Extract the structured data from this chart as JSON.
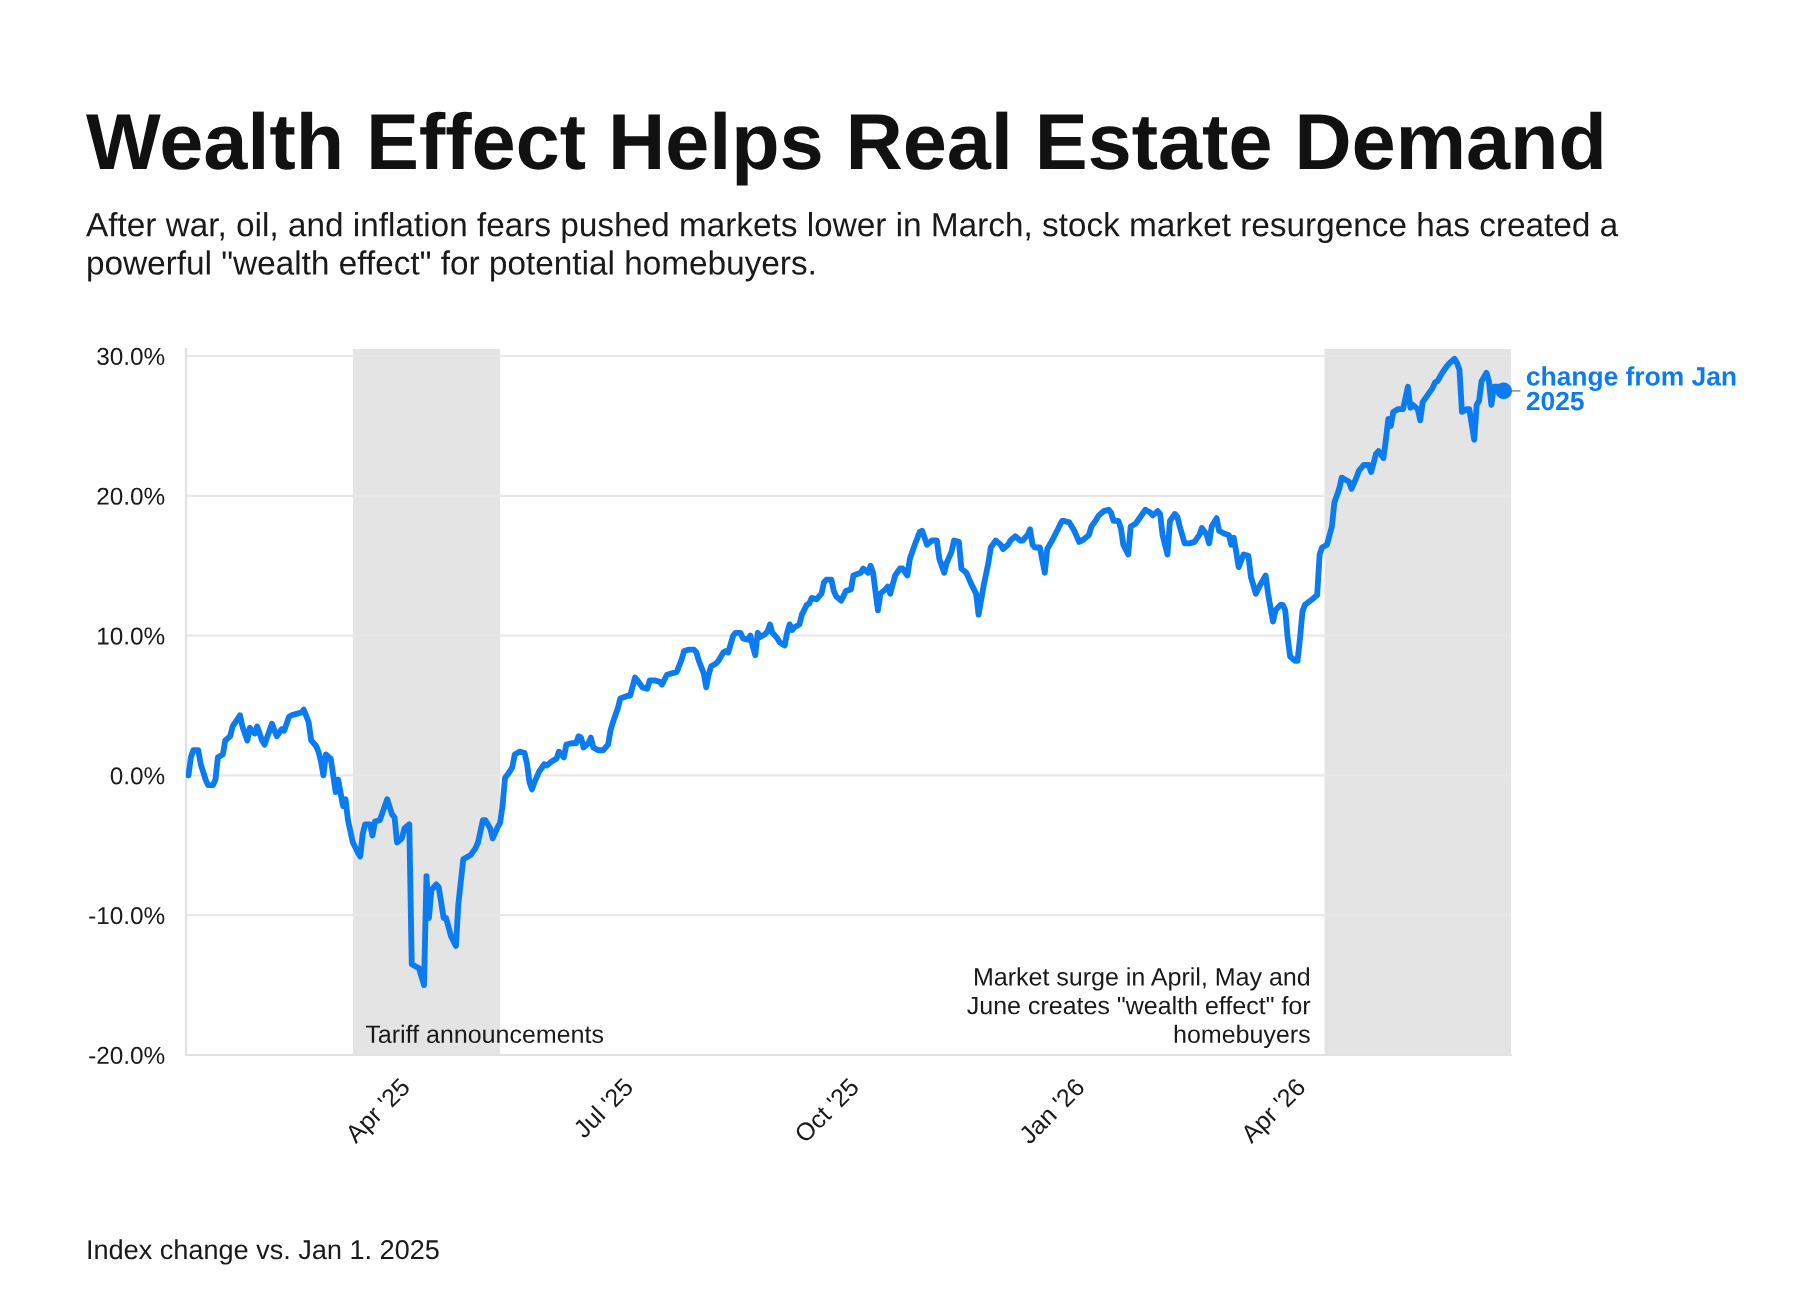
{
  "chart_data": {
    "type": "line",
    "title": "Wealth Effect Helps Real Estate Demand",
    "subtitle": "After war, oil, and inflation fears pushed markets lower in March, stock market resurgence has created a powerful \"wealth effect\" for potential homebuyers.",
    "annotations": [
      "Index change vs. Jan 1. 2025"
    ],
    "x": [
      "2025-01-02",
      "2025-01-03",
      "2025-01-04",
      "2025-01-06",
      "2025-01-07",
      "2025-01-09",
      "2025-01-10",
      "2025-01-12",
      "2025-01-13",
      "2025-01-14",
      "2025-01-16",
      "2025-01-17",
      "2025-01-19",
      "2025-01-20",
      "2025-01-23",
      "2025-01-24",
      "2025-01-26",
      "2025-01-27",
      "2025-01-29",
      "2025-01-30",
      "2025-02-01",
      "2025-02-02",
      "2025-02-04",
      "2025-02-05",
      "2025-02-07",
      "2025-02-09",
      "2025-02-10",
      "2025-02-12",
      "2025-02-13",
      "2025-02-15",
      "2025-02-17",
      "2025-02-18",
      "2025-02-20",
      "2025-02-21",
      "2025-02-23",
      "2025-02-24",
      "2025-02-25",
      "2025-02-26",
      "2025-02-27",
      "2025-03-01",
      "2025-03-02",
      "2025-03-03",
      "2025-03-04",
      "2025-03-06",
      "2025-03-07",
      "2025-03-08",
      "2025-03-10",
      "2025-03-12",
      "2025-03-13",
      "2025-03-14",
      "2025-03-15",
      "2025-03-17",
      "2025-03-18",
      "2025-03-19",
      "2025-03-21",
      "2025-03-23",
      "2025-03-24",
      "2025-03-26",
      "2025-03-27",
      "2025-03-28",
      "2025-03-30",
      "2025-03-31",
      "2025-04-02",
      "2025-04-03",
      "2025-04-05",
      "2025-04-06",
      "2025-04-08",
      "2025-04-09",
      "2025-04-10",
      "2025-04-11",
      "2025-04-13",
      "2025-04-14",
      "2025-04-16",
      "2025-04-17",
      "2025-04-19",
      "2025-04-21",
      "2025-04-22",
      "2025-04-24",
      "2025-04-27",
      "2025-04-29",
      "2025-04-30",
      "2025-05-02",
      "2025-05-03",
      "2025-05-05",
      "2025-05-06",
      "2025-05-08",
      "2025-05-09",
      "2025-05-10",
      "2025-05-11",
      "2025-05-13",
      "2025-05-14",
      "2025-05-15",
      "2025-05-17",
      "2025-05-19",
      "2025-05-20",
      "2025-05-21",
      "2025-05-22",
      "2025-05-23",
      "2025-05-25",
      "2025-05-27",
      "2025-05-28",
      "2025-05-30",
      "2025-06-01",
      "2025-06-02",
      "2025-06-04",
      "2025-06-05",
      "2025-06-07",
      "2025-06-09",
      "2025-06-10",
      "2025-06-11",
      "2025-06-12",
      "2025-06-14",
      "2025-06-15",
      "2025-06-16",
      "2025-06-18",
      "2025-06-20",
      "2025-06-22",
      "2025-06-23",
      "2025-06-24",
      "2025-06-26",
      "2025-06-27",
      "2025-06-30",
      "2025-07-01",
      "2025-07-03",
      "2025-07-04",
      "2025-07-06",
      "2025-07-08",
      "2025-07-09",
      "2025-07-11",
      "2025-07-13",
      "2025-07-14",
      "2025-07-16",
      "2025-07-18",
      "2025-07-20",
      "2025-07-22",
      "2025-07-23",
      "2025-07-25",
      "2025-07-27",
      "2025-07-28",
      "2025-07-29",
      "2025-07-31",
      "2025-08-01",
      "2025-08-02",
      "2025-08-03",
      "2025-08-05",
      "2025-08-06",
      "2025-08-08",
      "2025-08-09",
      "2025-08-10",
      "2025-08-12",
      "2025-08-13",
      "2025-08-15",
      "2025-08-16",
      "2025-08-18",
      "2025-08-19",
      "2025-08-20",
      "2025-08-21",
      "2025-08-22",
      "2025-08-23",
      "2025-08-25",
      "2025-08-26",
      "2025-08-27",
      "2025-08-28",
      "2025-08-30",
      "2025-08-31",
      "2025-09-02",
      "2025-09-03",
      "2025-09-04",
      "2025-09-05",
      "2025-09-06",
      "2025-09-08",
      "2025-09-09",
      "2025-09-11",
      "2025-09-12",
      "2025-09-13",
      "2025-09-15",
      "2025-09-17",
      "2025-09-18",
      "2025-09-19",
      "2025-09-21",
      "2025-09-22",
      "2025-09-23",
      "2025-09-25",
      "2025-09-27",
      "2025-09-29",
      "2025-09-30",
      "2025-10-03",
      "2025-10-04",
      "2025-10-06",
      "2025-10-07",
      "2025-10-08",
      "2025-10-10",
      "2025-10-11",
      "2025-10-13",
      "2025-10-14",
      "2025-10-15",
      "2025-10-17",
      "2025-10-19",
      "2025-10-20",
      "2025-10-22",
      "2025-10-23",
      "2025-10-25",
      "2025-10-27",
      "2025-10-28",
      "2025-10-30",
      "2025-11-01",
      "2025-11-03",
      "2025-11-04",
      "2025-11-06",
      "2025-11-07",
      "2025-11-09",
      "2025-11-10",
      "2025-11-12",
      "2025-11-13",
      "2025-11-15",
      "2025-11-17",
      "2025-11-19",
      "2025-11-20",
      "2025-11-21",
      "2025-11-22",
      "2025-11-24",
      "2025-11-25",
      "2025-11-27",
      "2025-11-29",
      "2025-11-30",
      "2025-12-02",
      "2025-12-03",
      "2025-12-05",
      "2025-12-07",
      "2025-12-08",
      "2025-12-10",
      "2025-12-11",
      "2025-12-12",
      "2025-12-13",
      "2025-12-15",
      "2025-12-17",
      "2025-12-18",
      "2025-12-20",
      "2025-12-22",
      "2025-12-24",
      "2025-12-25",
      "2025-12-27",
      "2025-12-29",
      "2025-12-31",
      "2026-01-02",
      "2026-01-04",
      "2026-01-05",
      "2026-01-07",
      "2026-01-08",
      "2026-01-10",
      "2026-01-12",
      "2026-01-13",
      "2026-01-14",
      "2026-01-16",
      "2026-01-17",
      "2026-01-18",
      "2026-01-20",
      "2026-01-21",
      "2026-01-23",
      "2026-01-25",
      "2026-01-27",
      "2026-01-29",
      "2026-01-30",
      "2026-02-01",
      "2026-02-02",
      "2026-02-03",
      "2026-02-05",
      "2026-02-06",
      "2026-02-08",
      "2026-02-09",
      "2026-02-10",
      "2026-02-12",
      "2026-02-14",
      "2026-02-16",
      "2026-02-18",
      "2026-02-19",
      "2026-02-21",
      "2026-02-22",
      "2026-02-23",
      "2026-02-25",
      "2026-02-26",
      "2026-02-28",
      "2026-03-02",
      "2026-03-03",
      "2026-03-04",
      "2026-03-05",
      "2026-03-06",
      "2026-03-08",
      "2026-03-10",
      "2026-03-11",
      "2026-03-13",
      "2026-03-15",
      "2026-03-17",
      "2026-03-18",
      "2026-03-19",
      "2026-03-20",
      "2026-03-21",
      "2026-03-23",
      "2026-03-24",
      "2026-03-25",
      "2026-03-26",
      "2026-03-27",
      "2026-03-29",
      "2026-03-30",
      "2026-03-31",
      "2026-04-01",
      "2026-04-02",
      "2026-04-05",
      "2026-04-07",
      "2026-04-08",
      "2026-04-09",
      "2026-04-11",
      "2026-04-13",
      "2026-04-14",
      "2026-04-16",
      "2026-04-17",
      "2026-04-18",
      "2026-04-20",
      "2026-04-21",
      "2026-04-23",
      "2026-04-24",
      "2026-04-26",
      "2026-04-28",
      "2026-04-29",
      "2026-05-01",
      "2026-05-02",
      "2026-05-04",
      "2026-05-05",
      "2026-05-06",
      "2026-05-07",
      "2026-05-08",
      "2026-05-10",
      "2026-05-12",
      "2026-05-14",
      "2026-05-15",
      "2026-05-16",
      "2026-05-18",
      "2026-05-19",
      "2026-05-20",
      "2026-05-22",
      "2026-05-24",
      "2026-05-25",
      "2026-05-26",
      "2026-05-28",
      "2026-05-30",
      "2026-05-31",
      "2026-06-02",
      "2026-06-03",
      "2026-06-04",
      "2026-06-05",
      "2026-06-07",
      "2026-06-08",
      "2026-06-10",
      "2026-06-11",
      "2026-06-12",
      "2026-06-13",
      "2026-06-15",
      "2026-06-16",
      "2026-06-17",
      "2026-06-18",
      "2026-06-20",
      "2026-06-22"
    ],
    "series": [
      {
        "name": "change from Jan 2025",
        "color": "#0b7bf2",
        "values": [
          0.0,
          1.3,
          1.8,
          1.8,
          0.8,
          -0.3,
          -0.7,
          -0.7,
          -0.3,
          1.3,
          1.5,
          2.5,
          2.8,
          3.5,
          4.3,
          3.5,
          2.5,
          3.4,
          3.0,
          3.5,
          2.5,
          2.2,
          3.2,
          3.7,
          2.8,
          3.3,
          3.2,
          4.2,
          4.3,
          4.4,
          4.5,
          4.7,
          3.8,
          2.5,
          2.1,
          1.7,
          1.0,
          0.0,
          1.5,
          1.2,
          0.0,
          -1.2,
          -0.3,
          -2.2,
          -1.7,
          -3.2,
          -4.8,
          -5.5,
          -5.8,
          -4.2,
          -3.5,
          -3.5,
          -4.3,
          -3.3,
          -3.2,
          -2.2,
          -1.7,
          -2.8,
          -3.0,
          -4.8,
          -4.5,
          -3.8,
          -3.5,
          -13.5,
          -13.7,
          -13.8,
          -15.0,
          -7.2,
          -10.2,
          -8.2,
          -7.8,
          -8.0,
          -10.2,
          -10.2,
          -11.5,
          -12.2,
          -9.2,
          -6.0,
          -5.7,
          -5.2,
          -4.8,
          -3.2,
          -3.2,
          -3.8,
          -4.5,
          -3.7,
          -3.4,
          -2.2,
          -0.2,
          0.3,
          0.6,
          1.5,
          1.7,
          1.6,
          0.8,
          -0.5,
          -1.0,
          -0.5,
          0.3,
          0.8,
          0.7,
          1.0,
          1.2,
          1.7,
          1.3,
          2.2,
          2.3,
          2.3,
          2.8,
          2.7,
          2.0,
          2.3,
          2.7,
          2.0,
          1.8,
          1.8,
          2.2,
          3.2,
          3.8,
          4.8,
          5.5,
          5.7,
          5.7,
          7.0,
          6.8,
          6.3,
          6.2,
          6.8,
          6.8,
          6.7,
          6.5,
          7.2,
          7.3,
          7.4,
          8.3,
          8.9,
          9.0,
          9.0,
          8.8,
          8.2,
          7.3,
          6.3,
          7.2,
          7.8,
          8.0,
          8.2,
          8.8,
          8.9,
          8.8,
          10.0,
          10.2,
          10.2,
          9.8,
          9.7,
          10.0,
          9.2,
          8.6,
          10.2,
          9.9,
          10.1,
          10.3,
          10.8,
          10.2,
          9.8,
          9.5,
          9.3,
          10.2,
          10.8,
          10.4,
          10.6,
          10.8,
          11.5,
          12.2,
          12.3,
          12.7,
          12.6,
          13.0,
          13.8,
          14.0,
          14.0,
          13.2,
          12.8,
          12.5,
          13.2,
          13.3,
          14.3,
          14.5,
          14.8,
          14.5,
          15.0,
          14.5,
          11.8,
          13.0,
          13.3,
          13.5,
          13.0,
          14.3,
          14.8,
          14.8,
          14.3,
          15.5,
          16.5,
          17.4,
          17.5,
          16.5,
          16.8,
          16.8,
          15.5,
          14.5,
          15.2,
          16.0,
          16.8,
          16.7,
          14.8,
          14.5,
          13.7,
          13.0,
          11.5,
          12.5,
          13.5,
          15.2,
          16.3,
          16.8,
          16.5,
          16.2,
          16.5,
          16.8,
          17.1,
          16.8,
          16.8,
          17.2,
          17.6,
          16.5,
          16.3,
          16.3,
          14.5,
          16.2,
          16.8,
          17.5,
          18.2,
          18.2,
          18.1,
          17.5,
          16.7,
          16.9,
          17.2,
          17.8,
          18.3,
          18.6,
          18.9,
          19.0,
          18.8,
          18.2,
          18.2,
          17.7,
          16.5,
          15.8,
          17.8,
          18.0,
          18.5,
          19.0,
          18.8,
          18.6,
          18.9,
          18.7,
          17.2,
          15.8,
          18.2,
          18.7,
          18.5,
          17.8,
          16.6,
          16.6,
          16.7,
          17.2,
          17.7,
          17.2,
          16.6,
          17.8,
          18.4,
          17.5,
          17.3,
          17.2,
          16.5,
          17.0,
          16.0,
          14.9,
          15.8,
          15.7,
          14.2,
          13.0,
          13.7,
          14.3,
          13.0,
          12.0,
          11.0,
          11.8,
          12.2,
          12.2,
          11.8,
          9.8,
          8.5,
          8.2,
          8.2,
          9.8,
          11.7,
          12.2,
          12.6,
          12.9,
          15.8,
          16.3,
          16.5,
          17.8,
          19.5,
          20.5,
          21.3,
          21.2,
          21.0,
          20.5,
          21.3,
          21.8,
          22.2,
          22.2,
          21.7,
          23.0,
          23.2,
          22.7,
          24.0,
          25.5,
          25.0,
          26.0,
          26.2,
          26.2,
          27.8,
          26.3,
          26.5,
          26.2,
          25.4,
          26.7,
          27.2,
          27.7,
          28.1,
          28.2,
          28.8,
          29.3,
          29.5,
          29.8,
          29.5,
          29.0,
          26.0,
          26.2,
          26.2,
          24.0,
          26.5,
          26.8,
          28.2,
          28.8,
          28.2,
          26.5,
          27.8,
          27.8,
          27.5
        ]
      }
    ],
    "xlim": [
      "2025-01-01",
      "2026-06-25"
    ],
    "xticks": [
      {
        "value": "2025-04-01",
        "label": "Apr '25"
      },
      {
        "value": "2025-07-01",
        "label": "Jul '25"
      },
      {
        "value": "2025-10-01",
        "label": "Oct '25"
      },
      {
        "value": "2026-01-01",
        "label": "Jan '26"
      },
      {
        "value": "2026-04-01",
        "label": "Apr '26"
      }
    ],
    "ylim": [
      -20,
      30.5
    ],
    "yticks": [
      {
        "value": -20,
        "label": "-20.0%"
      },
      {
        "value": -10,
        "label": "-10.0%"
      },
      {
        "value": 0,
        "label": "0.0%"
      },
      {
        "value": 10,
        "label": "10.0%"
      },
      {
        "value": 20,
        "label": "20.0%"
      },
      {
        "value": 30,
        "label": "30.0%"
      }
    ],
    "grid": "y",
    "line_style": "solid",
    "bands": [
      {
        "axis": "x",
        "from": "2025-03-10",
        "to": "2025-05-09",
        "label": "Tariff announcements",
        "color": "#e4e4e4"
      },
      {
        "axis": "x",
        "from": "2026-04-10",
        "to": "2026-06-25",
        "label": "Market surge in April, May and June creates \"wealth effect\" for homebuyers",
        "color": "#e4e4e4"
      }
    ]
  }
}
